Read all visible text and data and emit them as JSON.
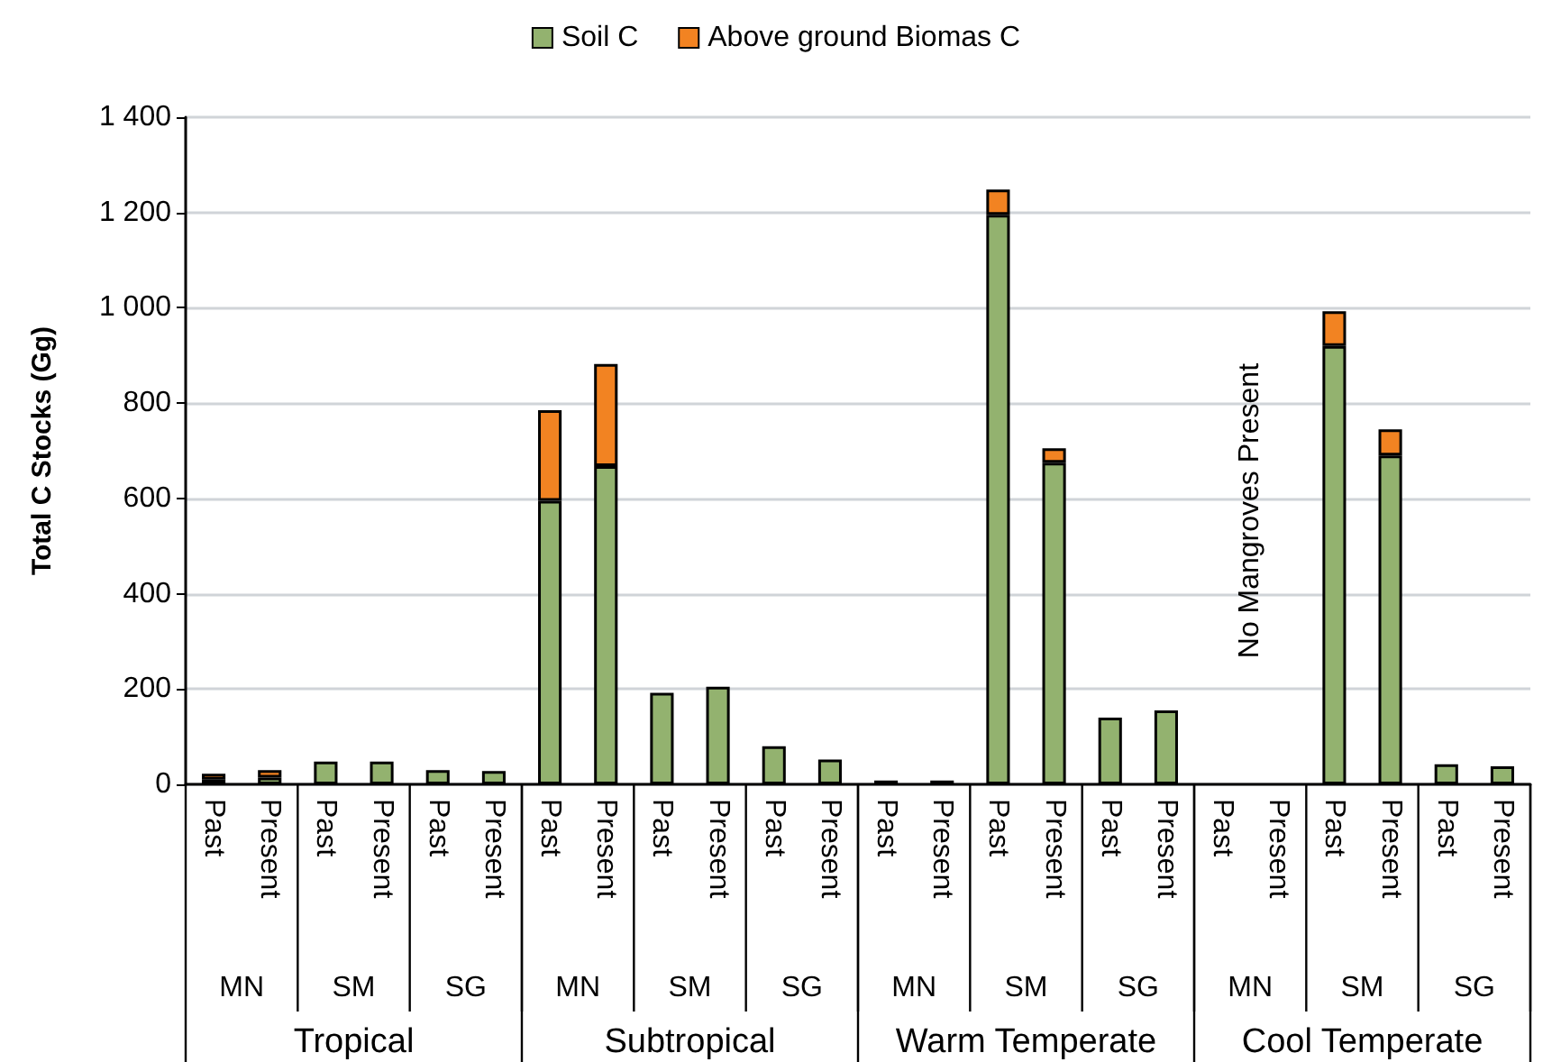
{
  "chart_data": {
    "type": "bar",
    "stacked": true,
    "ylabel": "Total C Stocks (Gg)",
    "categories": [
      "Past",
      "Present",
      "Past",
      "Present",
      "Past",
      "Present",
      "Past",
      "Present",
      "Past",
      "Present",
      "Past",
      "Present",
      "Past",
      "Present",
      "Past",
      "Present",
      "Past",
      "Present",
      "Past",
      "Present",
      "Past",
      "Present",
      "Past",
      "Present"
    ],
    "series": [
      {
        "name": "Soil C",
        "color": "#93b26f",
        "values": [
          10,
          14,
          48,
          48,
          30,
          28,
          595,
          668,
          192,
          205,
          80,
          52,
          8,
          8,
          1195,
          675,
          140,
          155,
          null,
          null,
          920,
          690,
          42,
          38
        ]
      },
      {
        "name": "Above ground Biomas C",
        "color": "#f28322",
        "values": [
          12,
          16,
          null,
          null,
          null,
          null,
          190,
          214,
          null,
          null,
          null,
          null,
          null,
          null,
          53,
          30,
          null,
          null,
          null,
          null,
          73,
          55,
          null,
          null
        ]
      }
    ],
    "ylim": [
      0,
      1400
    ],
    "yticks": [
      0,
      200,
      400,
      600,
      800,
      {
        "value": 1000,
        "label": "1 000"
      },
      {
        "value": 1200,
        "label": "1 200"
      },
      {
        "value": 1400,
        "label": "1 400"
      }
    ],
    "grid": "y",
    "legend": "top",
    "annotations": [
      "MN",
      "SM",
      "SG",
      "MN",
      "SM",
      "SG",
      "MN",
      "SM",
      "SG",
      "MN",
      "SM",
      "SG",
      "Tropical",
      "Subtropical",
      "Warm Temperate",
      "Cool Temperate",
      "No Mangroves Present"
    ]
  }
}
